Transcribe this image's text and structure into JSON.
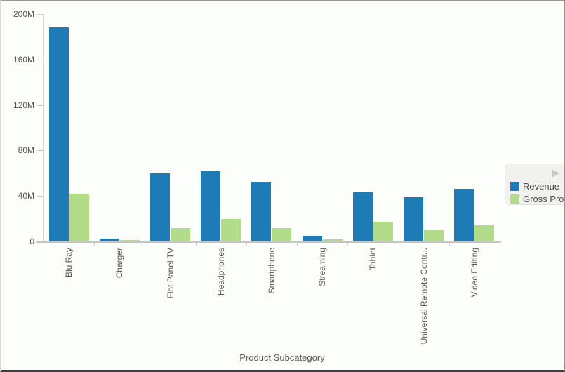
{
  "window": {
    "background": "#fcfefa"
  },
  "colors": {
    "revenue": "#1F7BB6",
    "gross_profit": "#B2DC8A",
    "axis_line": "#c9c9c9",
    "axis_text": "#575757",
    "legend_background": "#f1f1ef",
    "legend_text": "#4a4a4a",
    "legend_arrow": "#c8c8c8"
  },
  "chart_data": {
    "type": "bar",
    "title": "",
    "xlabel": "Product Subcategory",
    "ylabel": "",
    "ymax_millions": 200,
    "y_tick_values_millions": [
      200,
      160,
      120,
      80,
      40,
      0
    ],
    "y_tick_labels": [
      "200M",
      "160M",
      "120M",
      "80M",
      "40M",
      "0"
    ],
    "categories": [
      "Blu Ray",
      "Charger",
      "Flat Panel TV",
      "Headphones",
      "Smartphone",
      "Streaming",
      "Tablet",
      "Universal Remote Contr...",
      "Video Editing"
    ],
    "series": [
      {
        "name": "Revenue",
        "color": "#1F7BB6",
        "values_millions": [
          188,
          2.5,
          60,
          61.5,
          52,
          5,
          43.5,
          39,
          46.5
        ]
      },
      {
        "name": "Gross Profit",
        "color": "#B2DC8A",
        "values_millions": [
          42,
          1,
          12,
          20,
          12,
          2,
          17.5,
          10,
          14
        ]
      }
    ],
    "legend_position": "right",
    "grid": false
  },
  "legend": {
    "items": [
      {
        "label": "Revenue",
        "color": "#1F7BB6"
      },
      {
        "label": "Gross Profit",
        "color": "#B2DC8A"
      }
    ],
    "expander_icon": "right-triangle"
  }
}
